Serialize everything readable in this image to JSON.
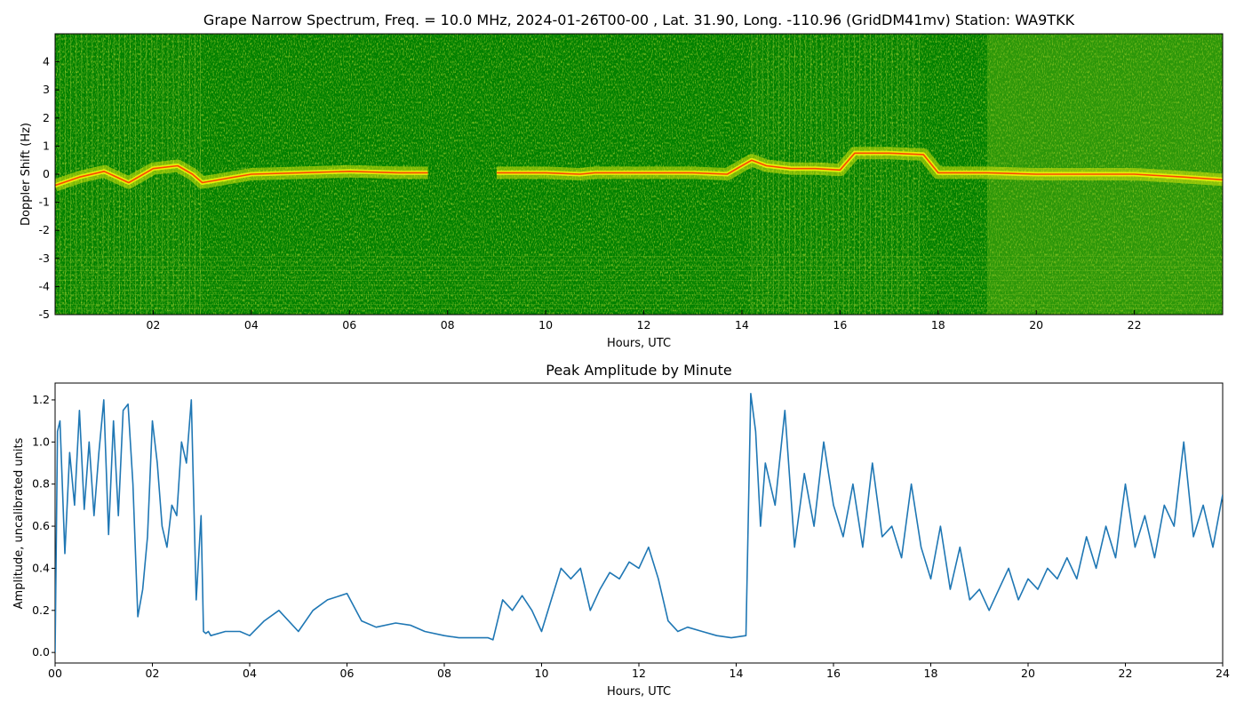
{
  "chart_data": [
    {
      "type": "heatmap",
      "title": "Grape Narrow Spectrum, Freq. = 10.0 MHz, 2024-01-26T00-00 , Lat.  31.90, Long. -110.96 (GridDM41mv) Station: WA9TKK",
      "xlabel": "Hours, UTC",
      "ylabel": "Doppler Shift (Hz)",
      "xlim": [
        0,
        23.8
      ],
      "ylim": [
        -5,
        5
      ],
      "x_ticks": [
        "02",
        "04",
        "06",
        "08",
        "10",
        "12",
        "14",
        "16",
        "18",
        "20",
        "22"
      ],
      "x_tick_values": [
        2,
        4,
        6,
        8,
        10,
        12,
        14,
        16,
        18,
        20,
        22
      ],
      "y_ticks": [
        "-5",
        "-4",
        "-3",
        "-2",
        "-1",
        "0",
        "1",
        "2",
        "3",
        "4"
      ],
      "y_tick_values": [
        -5,
        -4,
        -3,
        -2,
        -1,
        0,
        1,
        2,
        3,
        4
      ],
      "colors": {
        "background": "#008000",
        "mid": "#d8e60a",
        "peak": "#ff2a00"
      },
      "trace": {
        "hours": [
          0,
          0.5,
          1.0,
          1.5,
          2.0,
          2.5,
          2.8,
          3.0,
          4.0,
          5.0,
          6.0,
          7.0,
          7.6,
          8.4,
          9.0,
          10.0,
          10.7,
          11.0,
          12.0,
          13.0,
          13.7,
          14.2,
          14.5,
          15.0,
          15.5,
          16.0,
          16.3,
          17.0,
          17.7,
          18.0,
          19.0,
          20.0,
          21.0,
          22.0,
          23.0,
          23.8
        ],
        "doppler_hz": [
          -0.4,
          -0.1,
          0.1,
          -0.3,
          0.2,
          0.3,
          0.0,
          -0.3,
          0.0,
          0.05,
          0.1,
          0.05,
          0.05,
          null,
          0.05,
          0.05,
          0.0,
          0.05,
          0.05,
          0.05,
          0.0,
          0.5,
          0.3,
          0.2,
          0.2,
          0.15,
          0.75,
          0.75,
          0.7,
          0.05,
          0.05,
          0.0,
          0.0,
          0.0,
          -0.1,
          -0.2
        ]
      }
    },
    {
      "type": "line",
      "title": "Peak Amplitude by Minute",
      "xlabel": "Hours, UTC",
      "ylabel": "Amplitude, uncalibrated units",
      "xlim": [
        0,
        24
      ],
      "ylim": [
        -0.05,
        1.28
      ],
      "x_ticks": [
        "00",
        "02",
        "04",
        "06",
        "08",
        "10",
        "12",
        "14",
        "16",
        "18",
        "20",
        "22",
        "24"
      ],
      "x_tick_values": [
        0,
        2,
        4,
        6,
        8,
        10,
        12,
        14,
        16,
        18,
        20,
        22,
        24
      ],
      "y_ticks": [
        "0.0",
        "0.2",
        "0.4",
        "0.6",
        "0.8",
        "1.0",
        "1.2"
      ],
      "y_tick_values": [
        0,
        0.2,
        0.4,
        0.6,
        0.8,
        1.0,
        1.2
      ],
      "color": "#1f77b4",
      "x": [
        0,
        0.05,
        0.1,
        0.2,
        0.3,
        0.4,
        0.5,
        0.6,
        0.7,
        0.8,
        0.9,
        1.0,
        1.1,
        1.2,
        1.3,
        1.4,
        1.5,
        1.6,
        1.7,
        1.8,
        1.9,
        2.0,
        2.1,
        2.2,
        2.3,
        2.4,
        2.5,
        2.6,
        2.7,
        2.8,
        2.9,
        3.0,
        3.05,
        3.1,
        3.15,
        3.2,
        3.5,
        3.8,
        4.0,
        4.3,
        4.6,
        5.0,
        5.3,
        5.6,
        6.0,
        6.3,
        6.6,
        7.0,
        7.3,
        7.6,
        8.0,
        8.3,
        8.6,
        8.9,
        9.0,
        9.2,
        9.4,
        9.6,
        9.8,
        10.0,
        10.2,
        10.4,
        10.6,
        10.8,
        11.0,
        11.2,
        11.4,
        11.6,
        11.8,
        12.0,
        12.2,
        12.4,
        12.6,
        12.8,
        13.0,
        13.3,
        13.6,
        13.9,
        14.2,
        14.3,
        14.4,
        14.5,
        14.6,
        14.8,
        15.0,
        15.2,
        15.4,
        15.6,
        15.8,
        16.0,
        16.2,
        16.4,
        16.6,
        16.8,
        17.0,
        17.2,
        17.4,
        17.6,
        17.8,
        18.0,
        18.2,
        18.4,
        18.6,
        18.8,
        19.0,
        19.2,
        19.4,
        19.6,
        19.8,
        20.0,
        20.2,
        20.4,
        20.6,
        20.8,
        21.0,
        21.2,
        21.4,
        21.6,
        21.8,
        22.0,
        22.2,
        22.4,
        22.6,
        22.8,
        23.0,
        23.2,
        23.4,
        23.6,
        23.8,
        24.0
      ],
      "y": [
        0.0,
        1.05,
        1.1,
        0.47,
        0.95,
        0.7,
        1.15,
        0.68,
        1.0,
        0.65,
        0.95,
        1.2,
        0.56,
        1.1,
        0.65,
        1.15,
        1.18,
        0.8,
        0.17,
        0.3,
        0.55,
        1.1,
        0.9,
        0.6,
        0.5,
        0.7,
        0.65,
        1.0,
        0.9,
        1.2,
        0.25,
        0.65,
        0.1,
        0.09,
        0.1,
        0.08,
        0.1,
        0.1,
        0.08,
        0.15,
        0.2,
        0.1,
        0.2,
        0.25,
        0.28,
        0.15,
        0.12,
        0.14,
        0.13,
        0.1,
        0.08,
        0.07,
        0.07,
        0.07,
        0.06,
        0.25,
        0.2,
        0.27,
        0.2,
        0.1,
        0.25,
        0.4,
        0.35,
        0.4,
        0.2,
        0.3,
        0.38,
        0.35,
        0.43,
        0.4,
        0.5,
        0.35,
        0.15,
        0.1,
        0.12,
        0.1,
        0.08,
        0.07,
        0.08,
        1.23,
        1.05,
        0.6,
        0.9,
        0.7,
        1.15,
        0.5,
        0.85,
        0.6,
        1.0,
        0.7,
        0.55,
        0.8,
        0.5,
        0.9,
        0.55,
        0.6,
        0.45,
        0.8,
        0.5,
        0.35,
        0.6,
        0.3,
        0.5,
        0.25,
        0.3,
        0.2,
        0.3,
        0.4,
        0.25,
        0.35,
        0.3,
        0.4,
        0.35,
        0.45,
        0.35,
        0.55,
        0.4,
        0.6,
        0.45,
        0.8,
        0.5,
        0.65,
        0.45,
        0.7,
        0.6,
        1.0,
        0.55,
        0.7,
        0.5,
        0.75
      ]
    }
  ]
}
